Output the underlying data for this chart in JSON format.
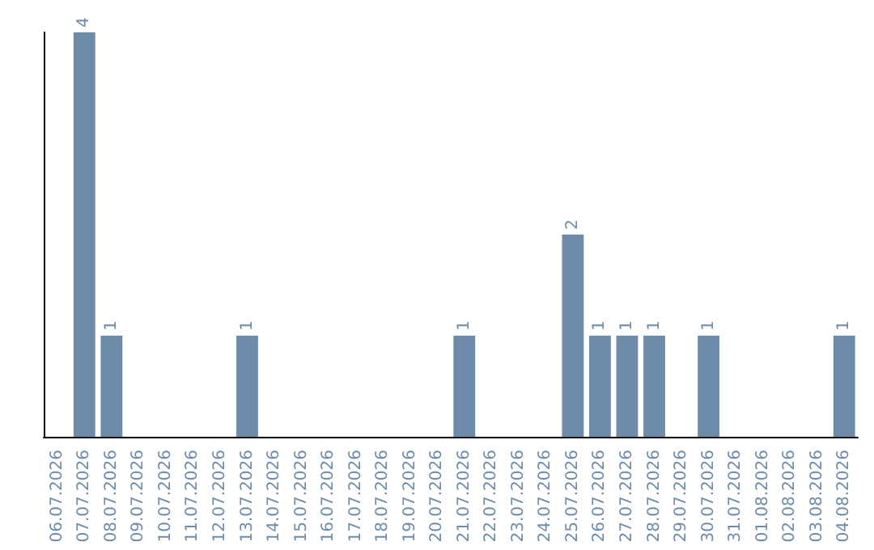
{
  "chart_data": {
    "type": "bar",
    "categories": [
      "06.07.2026",
      "07.07.2026",
      "08.07.2026",
      "09.07.2026",
      "10.07.2026",
      "11.07.2026",
      "12.07.2026",
      "13.07.2026",
      "14.07.2026",
      "15.07.2026",
      "16.07.2026",
      "17.07.2026",
      "18.07.2026",
      "19.07.2026",
      "20.07.2026",
      "21.07.2026",
      "22.07.2026",
      "23.07.2026",
      "24.07.2026",
      "25.07.2026",
      "26.07.2026",
      "27.07.2026",
      "28.07.2026",
      "29.07.2026",
      "30.07.2026",
      "31.07.2026",
      "01.08.2026",
      "02.08.2026",
      "03.08.2026",
      "04.08.2026"
    ],
    "values": [
      0,
      4,
      1,
      0,
      0,
      0,
      0,
      1,
      0,
      0,
      0,
      0,
      0,
      0,
      0,
      1,
      0,
      0,
      0,
      2,
      1,
      1,
      1,
      0,
      1,
      0,
      0,
      0,
      0,
      1
    ],
    "value_labels": [
      null,
      "4",
      "1",
      null,
      null,
      null,
      null,
      "1",
      null,
      null,
      null,
      null,
      null,
      null,
      null,
      "1",
      null,
      null,
      null,
      "2",
      "1",
      "1",
      "1",
      null,
      "1",
      null,
      null,
      null,
      null,
      "1"
    ],
    "color": "#6e8caa",
    "ylim": [
      0,
      4
    ],
    "tick_labels": "x"
  }
}
